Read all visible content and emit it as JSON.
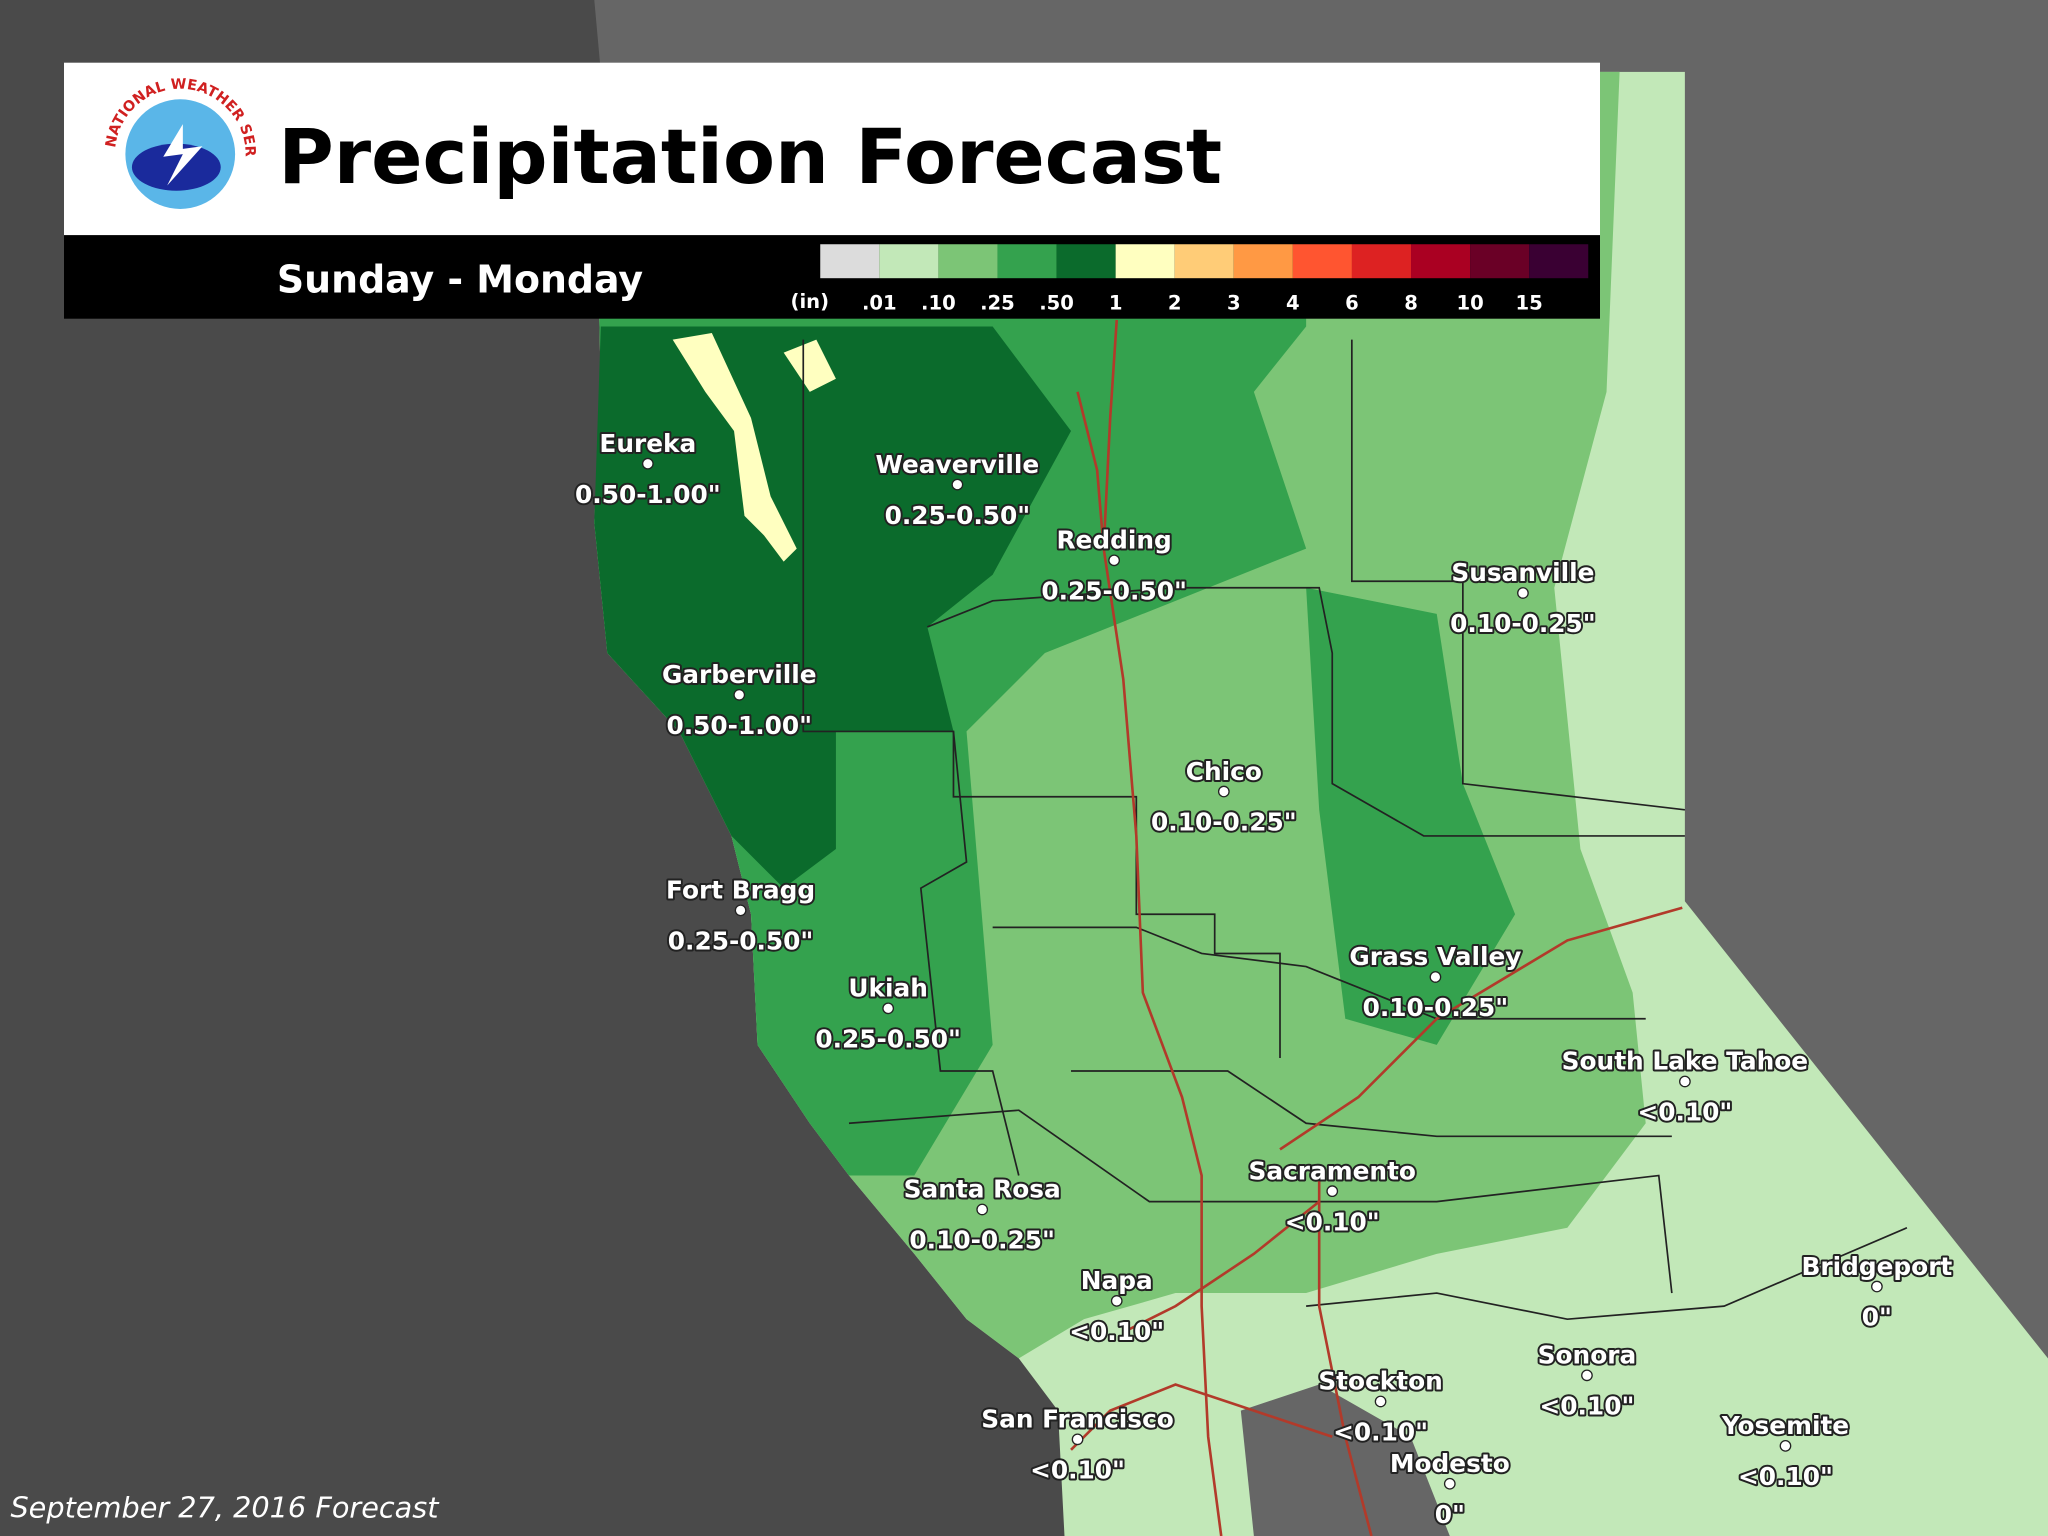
{
  "header": {
    "logo_text": "NATIONAL WEATHER SERVICE",
    "title": "Precipitation Forecast",
    "subtitle": "Sunday - Monday"
  },
  "legend": {
    "unit": "(in)",
    "labels": [
      ".01",
      ".10",
      ".25",
      ".50",
      "1",
      "2",
      "3",
      "4",
      "6",
      "8",
      "10",
      "15"
    ],
    "colors": [
      "#dcdcdc",
      "#c2e8b8",
      "#7cc576",
      "#34a24e",
      "#0b6b2c",
      "#ffffc0",
      "#ffcc77",
      "#ff9944",
      "#ff5530",
      "#dd2222",
      "#aa0022",
      "#6a0026",
      "#3a0033"
    ]
  },
  "cities": [
    {
      "name": "Eureka",
      "amount": "0.50-1.00\""
    },
    {
      "name": "Weaverville",
      "amount": "0.25-0.50\""
    },
    {
      "name": "Redding",
      "amount": "0.25-0.50\""
    },
    {
      "name": "Susanville",
      "amount": "0.10-0.25\""
    },
    {
      "name": "Garberville",
      "amount": "0.50-1.00\""
    },
    {
      "name": "Chico",
      "amount": "0.10-0.25\""
    },
    {
      "name": "Fort Bragg",
      "amount": "0.25-0.50\""
    },
    {
      "name": "Grass Valley",
      "amount": "0.10-0.25\""
    },
    {
      "name": "Ukiah",
      "amount": "0.25-0.50\""
    },
    {
      "name": "South Lake Tahoe",
      "amount": "<0.10\""
    },
    {
      "name": "Sacramento",
      "amount": "<0.10\""
    },
    {
      "name": "Santa Rosa",
      "amount": "0.10-0.25\""
    },
    {
      "name": "Bridgeport",
      "amount": "0\""
    },
    {
      "name": "Napa",
      "amount": "<0.10\""
    },
    {
      "name": "Sonora",
      "amount": "<0.10\""
    },
    {
      "name": "Stockton",
      "amount": "<0.10\""
    },
    {
      "name": "San Francisco",
      "amount": "<0.10\""
    },
    {
      "name": "Yosemite",
      "amount": "<0.10\""
    },
    {
      "name": "Modesto",
      "amount": "0\""
    }
  ],
  "footer": "September 27, 2016 Forecast"
}
